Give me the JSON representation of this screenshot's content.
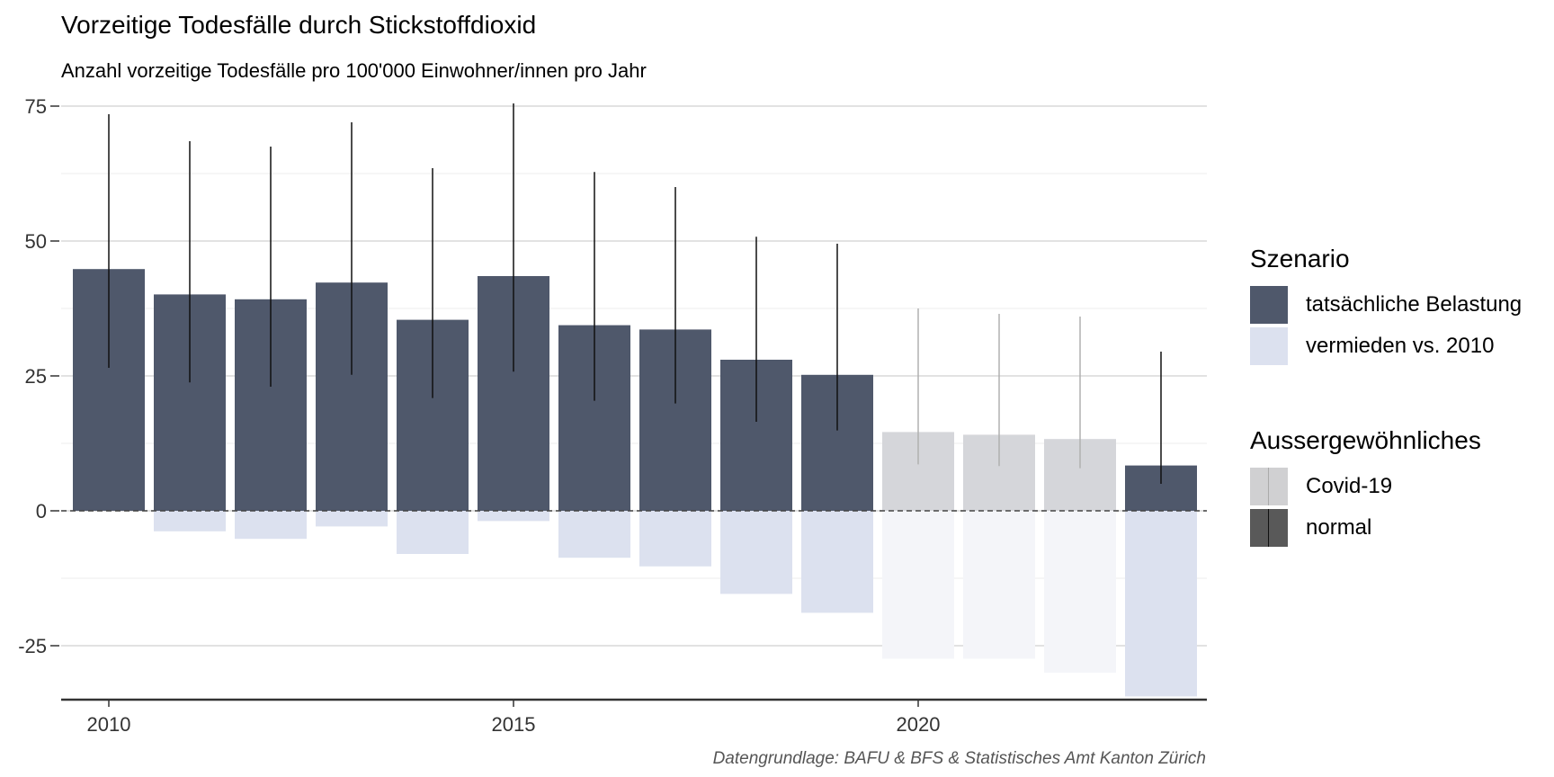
{
  "title": "Vorzeitige Todesfälle durch Stickstoffdioxid",
  "subtitle": "Anzahl vorzeitige Todesfälle pro 100'000 Einwohner/innen pro Jahr",
  "caption": "Datengrundlage: BAFU & BFS & Statistisches Amt Kanton Zürich",
  "legend": {
    "szenario_title": "Szenario",
    "szenario_items": [
      {
        "label": "tatsächliche Belastung",
        "color": "#4f586b"
      },
      {
        "label": "vermieden vs. 2010",
        "color": "#dce1ef"
      }
    ],
    "ausser_title": "Aussergewöhnliches",
    "ausser_items": [
      {
        "label": "Covid-19",
        "color": "#d0d0d2",
        "line": "#aaaaaa"
      },
      {
        "label": "normal",
        "color": "#595959",
        "line": "#111111"
      }
    ]
  },
  "chart_data": {
    "type": "bar",
    "title": "Vorzeitige Todesfälle durch Stickstoffdioxid",
    "subtitle": "Anzahl vorzeitige Todesfälle pro 100'000 Einwohner/innen pro Jahr",
    "xlabel": "",
    "ylabel": "",
    "x_ticks": [
      2010,
      2015,
      2020
    ],
    "y_ticks": [
      -25,
      0,
      25,
      50,
      75
    ],
    "ylim": [
      -35,
      75
    ],
    "grid": true,
    "legend_position": "right",
    "colors": {
      "actual": "#4f586b",
      "avoided": "#dce1ef",
      "covid_bar": "#d5d6da",
      "covid_avoided": "#f4f5f9",
      "errorbar": "#111111",
      "covid_errorbar": "#b0b0b0"
    },
    "years": [
      2010,
      2011,
      2012,
      2013,
      2014,
      2015,
      2016,
      2017,
      2018,
      2019,
      2020,
      2021,
      2022,
      2023
    ],
    "series": [
      {
        "name": "tatsächliche Belastung",
        "values": [
          44.8,
          40.1,
          39.2,
          42.3,
          35.4,
          43.5,
          34.4,
          33.6,
          28.0,
          25.2,
          14.6,
          14.1,
          13.3,
          8.4
        ]
      },
      {
        "name": "vermieden vs. 2010",
        "values": [
          0,
          -3.8,
          -5.2,
          -2.9,
          -8.0,
          -1.9,
          -8.7,
          -10.3,
          -15.4,
          -18.9,
          -27.4,
          -27.4,
          -30.0,
          -34.4
        ]
      }
    ],
    "error_low": [
      26.5,
      23.8,
      23.0,
      25.2,
      20.9,
      25.8,
      20.4,
      19.9,
      16.5,
      14.9,
      8.6,
      8.3,
      7.9,
      5.0
    ],
    "error_high": [
      73.5,
      68.5,
      67.5,
      72.0,
      63.5,
      75.5,
      62.8,
      60.0,
      50.8,
      49.5,
      37.5,
      36.5,
      36.0,
      29.5
    ],
    "ausserordentlich": [
      "normal",
      "normal",
      "normal",
      "normal",
      "normal",
      "normal",
      "normal",
      "normal",
      "normal",
      "normal",
      "Covid-19",
      "Covid-19",
      "Covid-19",
      "normal"
    ]
  }
}
